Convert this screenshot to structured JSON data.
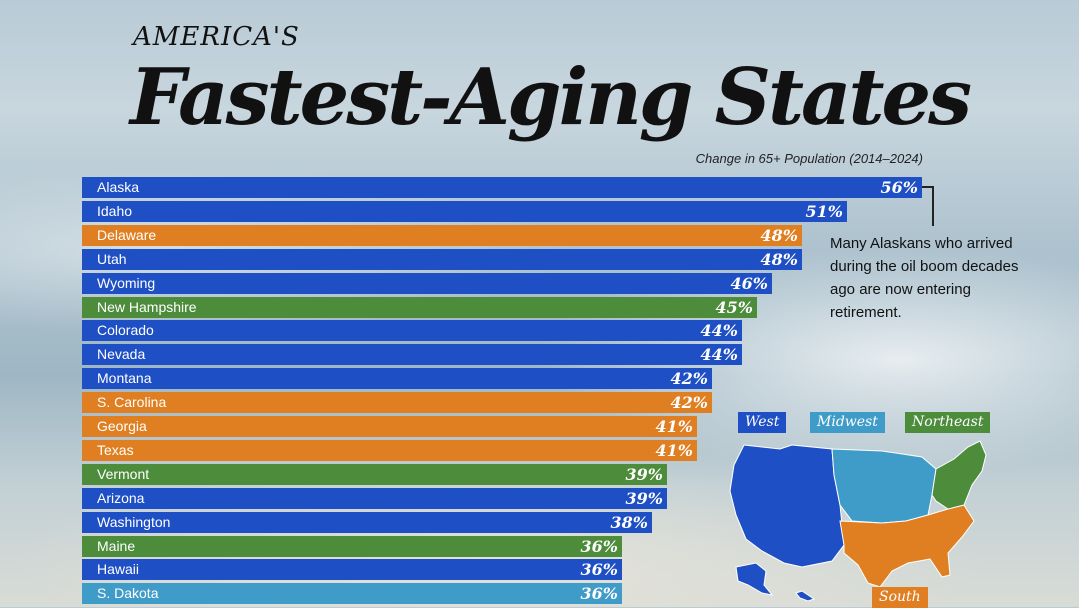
{
  "header": {
    "kicker": "AMERICA'S",
    "title": "Fastest-Aging States",
    "subtitle": "Change in 65+ Population (2014–2024)"
  },
  "annotation": {
    "text": "Many Alaskans who arrived during the oil boom decades ago are now entering retirement."
  },
  "colors": {
    "West": "#1f4fc4",
    "Midwest": "#3f9cc8",
    "Northeast": "#4c8c3b",
    "South": "#e07f22"
  },
  "legend": [
    {
      "name": "West"
    },
    {
      "name": "Midwest"
    },
    {
      "name": "Northeast"
    },
    {
      "name": "South"
    }
  ],
  "chart_data": {
    "type": "bar",
    "orientation": "horizontal",
    "title": "Fastest-Aging States",
    "subtitle": "Change in 65+ Population (2014–2024)",
    "categories": [
      "Alaska",
      "Idaho",
      "Delaware",
      "Utah",
      "Wyoming",
      "New Hampshire",
      "Colorado",
      "Nevada",
      "Montana",
      "S. Carolina",
      "Georgia",
      "Texas",
      "Vermont",
      "Arizona",
      "Washington",
      "Maine",
      "Hawaii",
      "S. Dakota"
    ],
    "values": [
      56,
      51,
      48,
      48,
      46,
      45,
      44,
      44,
      42,
      42,
      41,
      41,
      39,
      39,
      38,
      36,
      36,
      36
    ],
    "value_labels": [
      "56%",
      "51%",
      "48%",
      "48%",
      "46%",
      "45%",
      "44%",
      "44%",
      "42%",
      "42%",
      "41%",
      "41%",
      "39%",
      "39%",
      "38%",
      "36%",
      "36%",
      "36%"
    ],
    "regions": [
      "West",
      "West",
      "South",
      "West",
      "West",
      "Northeast",
      "West",
      "West",
      "West",
      "South",
      "South",
      "South",
      "Northeast",
      "West",
      "West",
      "Northeast",
      "West",
      "Midwest"
    ],
    "grid": false
  }
}
